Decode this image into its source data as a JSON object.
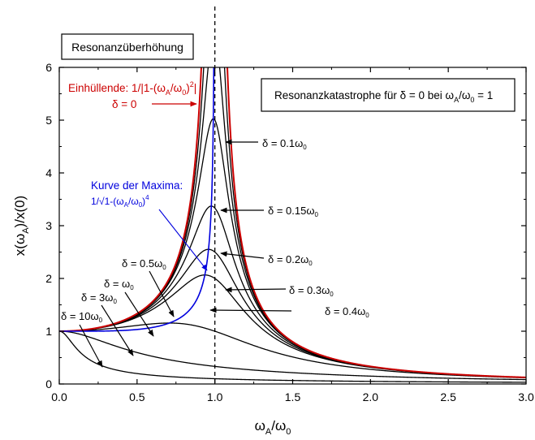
{
  "chart_data": {
    "type": "line",
    "title": "Resonanzüberhöhung",
    "xlabel": {
      "main": "ω",
      "sub": "A",
      "rest": "/ω",
      "sub2": "0"
    },
    "ylabel": {
      "main": "x(ω",
      "sub": "A",
      "rest": ")/x(0)"
    },
    "xlim": [
      0,
      3
    ],
    "ylim": [
      0,
      6
    ],
    "x_ticks": [
      "0.0",
      "0.5",
      "1.0",
      "1.5",
      "2.0",
      "2.5",
      "3.0"
    ],
    "y_ticks": [
      "0",
      "1",
      "2",
      "3",
      "4",
      "5",
      "6"
    ],
    "grid": false,
    "resonance_marker_x": 1.0,
    "colors": {
      "envelope": "#cc0000",
      "maxima": "#0000dd",
      "damped": "#000000"
    },
    "series": [
      {
        "damping": 0.1,
        "peak": 5.0
      },
      {
        "damping": 0.15,
        "peak": 3.35
      },
      {
        "damping": 0.2,
        "peak": 2.53
      },
      {
        "damping": 0.3,
        "peak": 1.75
      },
      {
        "damping": 0.4,
        "peak": 1.36
      },
      {
        "damping": 0.5,
        "peak": 1.15
      },
      {
        "damping": 1,
        "peak": 1.0
      },
      {
        "damping": 3,
        "peak": 1.0
      },
      {
        "damping": 10,
        "peak": 1.0
      }
    ],
    "annotations": {
      "info_box": {
        "text": "Resonanzkatastrophe für δ = 0 bei ω",
        "sub1": "A",
        "mid": "/ω",
        "sub2": "0",
        "end": " = 1"
      },
      "envelope_label": {
        "text": "Einhüllende: 1/|1-(ω",
        "sub1": "A",
        "mid": "/ω",
        "sub2": "0",
        "mid2": ")",
        "sup": "2",
        "end": "|"
      },
      "delta_zero_label": "δ = 0",
      "maxima_title": "Kurve der Maxima:",
      "maxima_formula": {
        "pre": "1/√1-(ω",
        "sub1": "A",
        "mid": "/ω",
        "sub2": "0",
        "mid2": ")",
        "sup": "4"
      },
      "series_labels": [
        {
          "pre": "δ = 0.1ω",
          "sub": "0"
        },
        {
          "pre": "δ = 0.15ω",
          "sub": "0"
        },
        {
          "pre": "δ = 0.2ω",
          "sub": "0"
        },
        {
          "pre": "δ = 0.3ω",
          "sub": "0"
        },
        {
          "pre": "δ = 0.4ω",
          "sub": "0"
        },
        {
          "pre": "δ = 0.5ω",
          "sub": "0"
        },
        {
          "pre": "δ = ω",
          "sub": "0"
        },
        {
          "pre": "δ = 3ω",
          "sub": "0"
        },
        {
          "pre": "δ = 10ω",
          "sub": "0"
        }
      ]
    }
  }
}
